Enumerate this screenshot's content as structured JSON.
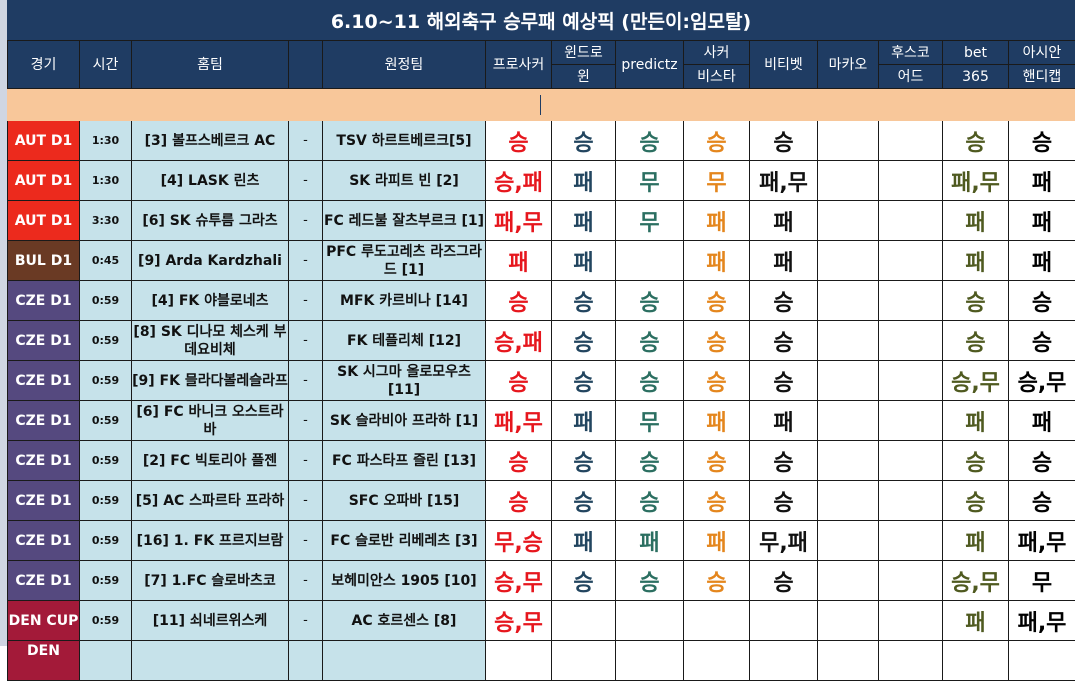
{
  "title": "6.10~11 해외축구 승무패 예상픽 (만든이:임모탈)",
  "headers": {
    "game": "경기",
    "time": "시간",
    "home": "홈팀",
    "away": "원정팀",
    "prosoccer": "프로사커",
    "windrawwin_1": "윈드로",
    "windrawwin_2": "윈",
    "predictz": "predictz",
    "soccervista_1": "사커",
    "soccervista_2": "비스타",
    "betibet": "비티벳",
    "macau": "마카오",
    "hooscore_1": "후스코",
    "hooscore_2": "어드",
    "bet365_1": "bet",
    "bet365_2": "365",
    "asian_1": "아시안",
    "asian_2": "핸디캡"
  },
  "colors": {
    "header_bg": "#1f3c63",
    "team_bg": "#c6e2ea",
    "orange_row": "#f8c79a",
    "aut": "#ec2a1d",
    "bul": "#6a3a24",
    "cze": "#55497f",
    "den": "#a31a39"
  },
  "rows": [
    {
      "league": "AUT D1",
      "time": "1:30",
      "home": "[3] 볼프스베르크 AC",
      "dash": "-",
      "away": "TSV 하르트베르크[5]",
      "p": [
        "승",
        "승",
        "승",
        "승",
        "승",
        "",
        "",
        "승",
        "승"
      ]
    },
    {
      "league": "AUT D1",
      "time": "1:30",
      "home": "[4] LASK 린츠",
      "dash": "-",
      "away": "SK 라피트 빈 [2]",
      "p": [
        "승,패",
        "패",
        "무",
        "무",
        "패,무",
        "",
        "",
        "패,무",
        "패"
      ]
    },
    {
      "league": "AUT D1",
      "time": "3:30",
      "home": "[6] SK 슈투름 그라츠",
      "dash": "-",
      "away": "FC 레드불 잘츠부르크 [1]",
      "p": [
        "패,무",
        "패",
        "무",
        "패",
        "패",
        "",
        "",
        "패",
        "패"
      ]
    },
    {
      "league": "BUL D1",
      "time": "0:45",
      "home": "[9] Arda Kardzhali",
      "dash": "-",
      "away": "PFC 루도고레츠 라즈그라드 [1]",
      "p": [
        "패",
        "패",
        "",
        "패",
        "패",
        "",
        "",
        "패",
        "패"
      ]
    },
    {
      "league": "CZE D1",
      "time": "0:59",
      "home": "[4] FK 야블로네츠",
      "dash": "-",
      "away": "MFK 카르비나 [14]",
      "p": [
        "승",
        "승",
        "승",
        "승",
        "승",
        "",
        "",
        "승",
        "승"
      ]
    },
    {
      "league": "CZE D1",
      "time": "0:59",
      "home": "[8] SK 디나모 체스케 부데요비체",
      "dash": "-",
      "away": "FK 테플리체 [12]",
      "p": [
        "승,패",
        "승",
        "승",
        "승",
        "승",
        "",
        "",
        "승",
        "승"
      ]
    },
    {
      "league": "CZE D1",
      "time": "0:59",
      "home": "[9] FK 믈라다볼레슬라프",
      "dash": "-",
      "away": "SK 시그마 올로모우츠 [11]",
      "p": [
        "승",
        "승",
        "승",
        "승",
        "승",
        "",
        "",
        "승,무",
        "승,무"
      ]
    },
    {
      "league": "CZE D1",
      "time": "0:59",
      "home": "[6] FC 바니크 오스트라바",
      "dash": "-",
      "away": "SK 슬라비아 프라하 [1]",
      "p": [
        "패,무",
        "패",
        "무",
        "패",
        "패",
        "",
        "",
        "패",
        "패"
      ]
    },
    {
      "league": "CZE D1",
      "time": "0:59",
      "home": "[2] FC 빅토리아 플젠",
      "dash": "-",
      "away": "FC 파스타프 즐린 [13]",
      "p": [
        "승",
        "승",
        "승",
        "승",
        "승",
        "",
        "",
        "승",
        "승"
      ]
    },
    {
      "league": "CZE D1",
      "time": "0:59",
      "home": "[5] AC 스파르타 프라하",
      "dash": "-",
      "away": "SFC 오파바 [15]",
      "p": [
        "승",
        "승",
        "승",
        "승",
        "승",
        "",
        "",
        "승",
        "승"
      ]
    },
    {
      "league": "CZE D1",
      "time": "0:59",
      "home": "[16] 1. FK 프르지브람",
      "dash": "-",
      "away": "FC 슬로반 리베레츠 [3]",
      "p": [
        "무,승",
        "패",
        "패",
        "패",
        "무,패",
        "",
        "",
        "패",
        "패,무"
      ]
    },
    {
      "league": "CZE D1",
      "time": "0:59",
      "home": "[7] 1.FC 슬로바츠코",
      "dash": "-",
      "away": "보헤미안스 1905 [10]",
      "p": [
        "승,무",
        "승",
        "승",
        "승",
        "승",
        "",
        "",
        "승,무",
        "무"
      ]
    },
    {
      "league": "DEN CUP",
      "time": "0:59",
      "home": "[11] 쇠네르위스케",
      "dash": "-",
      "away": "AC 호르센스 [8]",
      "p": [
        "승,무",
        "",
        "",
        "",
        "",
        "",
        "",
        "패",
        "패,무"
      ]
    }
  ],
  "partial_row": {
    "league": "DEN"
  }
}
